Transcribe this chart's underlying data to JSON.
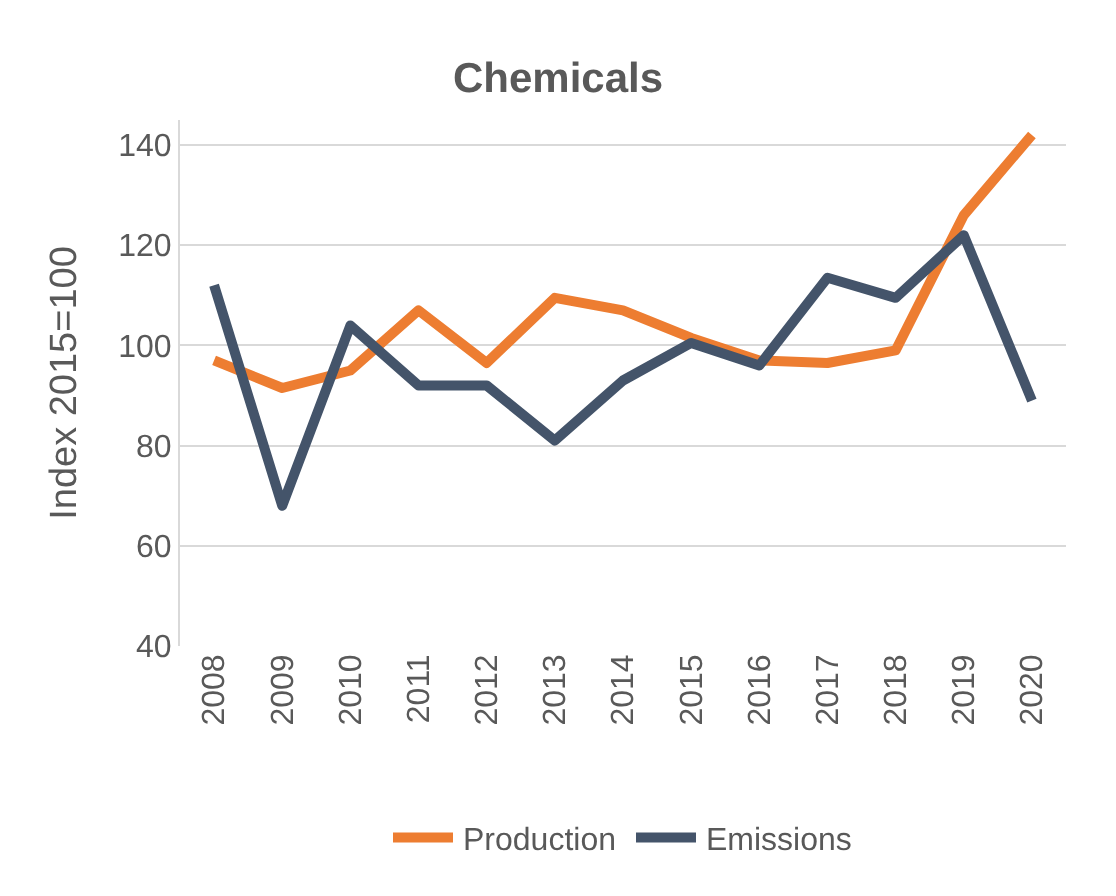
{
  "chart_data": {
    "type": "line",
    "title": "Chemicals",
    "ylabel": "Index 2015=100",
    "categories": [
      "2008",
      "2009",
      "2010",
      "2011",
      "2012",
      "2013",
      "2014",
      "2015",
      "2016",
      "2017",
      "2018",
      "2019",
      "2020"
    ],
    "series": [
      {
        "name": "Production",
        "color": "#ed7d31",
        "values": [
          97,
          91.5,
          95,
          107,
          96.5,
          109.5,
          107,
          101.5,
          97,
          96.5,
          99,
          126,
          142
        ]
      },
      {
        "name": "Emissions",
        "color": "#44546a",
        "values": [
          112,
          68,
          104,
          92,
          92,
          81,
          93,
          100.5,
          96,
          113.5,
          109.5,
          122,
          89
        ]
      }
    ],
    "ylim": [
      40,
      145
    ],
    "yticks": [
      40,
      60,
      80,
      100,
      120,
      140
    ],
    "grid": "y",
    "legend": "bottom",
    "marker": "none",
    "line_style": "solid"
  }
}
